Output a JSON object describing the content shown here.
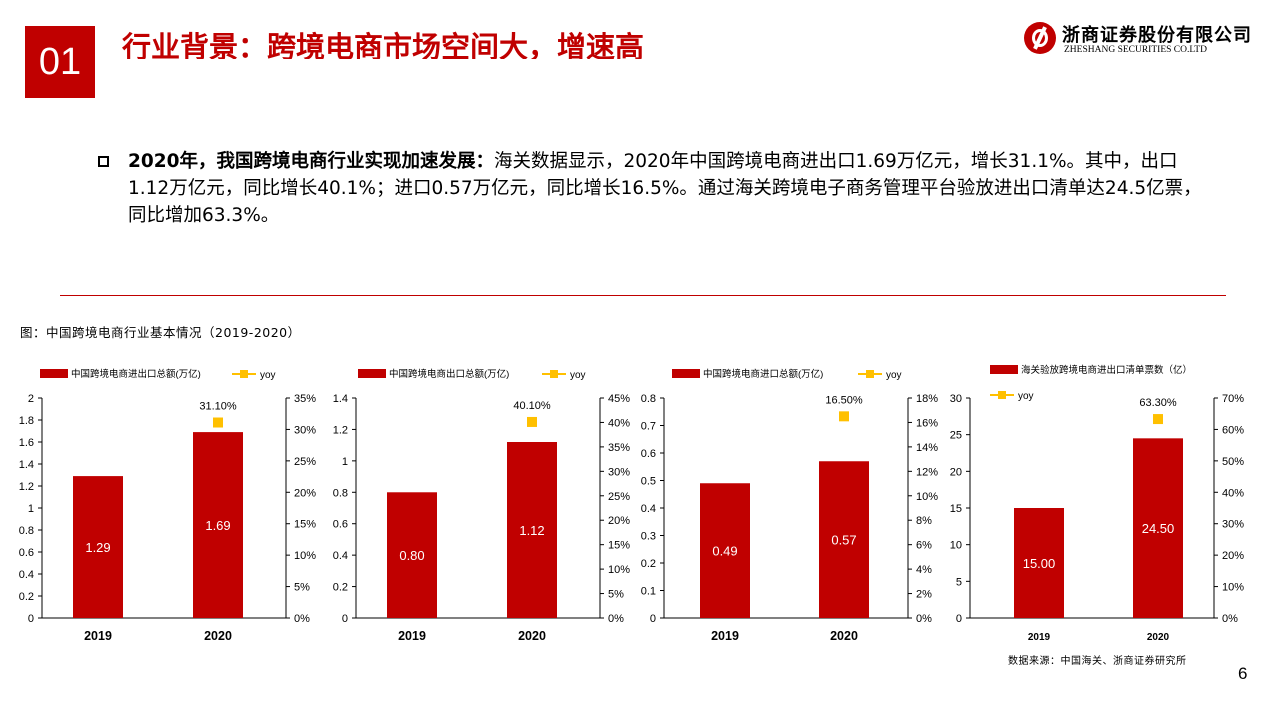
{
  "header": {
    "section_number": "01",
    "title": "行业背景：跨境电商市场空间大，增速高",
    "logo_cn": "浙商证券股份有限公司",
    "logo_en": "ZHESHANG SECURITIES CO.LTD"
  },
  "bullet": {
    "bold": "2020年，我国跨境电商行业实现加速发展：",
    "text": "海关数据显示，2020年中国跨境电商进出口1.69万亿元，增长31.1%。其中，出口1.12万亿元，同比增长40.1%；进口0.57万亿元，同比增长16.5%。通过海关跨境电子商务管理平台验放进出口清单达24.5亿票，同比增加63.3%。"
  },
  "figure_caption": "图：中国跨境电商行业基本情况（2019-2020）",
  "source": "数据来源：中国海关、浙商证券研究所",
  "page_number": "6",
  "colors": {
    "accent": "#c00000",
    "yoy": "#ffc000"
  },
  "chart_data": [
    {
      "type": "bar",
      "categories": [
        "2019",
        "2020"
      ],
      "series": [
        {
          "name": "中国跨境电商进出口总额(万亿)",
          "values": [
            1.29,
            1.69
          ],
          "labels": [
            "1.29",
            "1.69"
          ]
        },
        {
          "name": "yoy",
          "type": "scatter",
          "axis": "right",
          "values": [
            null,
            31.1
          ],
          "labels": [
            "",
            "31.10%"
          ]
        }
      ],
      "ylim": [
        0,
        2
      ],
      "yticks": [
        "0",
        "0.2",
        "0.4",
        "0.6",
        "0.8",
        "1",
        "1.2",
        "1.4",
        "1.6",
        "1.8",
        "2"
      ],
      "y2lim": [
        0,
        35
      ],
      "y2ticks": [
        "0%",
        "5%",
        "10%",
        "15%",
        "20%",
        "25%",
        "30%",
        "35%"
      ],
      "legend": "top",
      "grid": false
    },
    {
      "type": "bar",
      "categories": [
        "2019",
        "2020"
      ],
      "series": [
        {
          "name": "中国跨境电商出口总额(万亿)",
          "values": [
            0.8,
            1.12
          ],
          "labels": [
            "0.80",
            "1.12"
          ]
        },
        {
          "name": "yoy",
          "type": "scatter",
          "axis": "right",
          "values": [
            null,
            40.1
          ],
          "labels": [
            "",
            "40.10%"
          ]
        }
      ],
      "ylim": [
        0,
        1.4
      ],
      "yticks": [
        "0",
        "0.2",
        "0.4",
        "0.6",
        "0.8",
        "1",
        "1.2",
        "1.4"
      ],
      "y2lim": [
        0,
        45
      ],
      "y2ticks": [
        "0%",
        "5%",
        "10%",
        "15%",
        "20%",
        "25%",
        "30%",
        "35%",
        "40%",
        "45%"
      ],
      "legend": "top",
      "grid": false
    },
    {
      "type": "bar",
      "categories": [
        "2019",
        "2020"
      ],
      "series": [
        {
          "name": "中国跨境电商进口总额(万亿)",
          "values": [
            0.49,
            0.57
          ],
          "labels": [
            "0.49",
            "0.57"
          ]
        },
        {
          "name": "yoy",
          "type": "scatter",
          "axis": "right",
          "values": [
            null,
            16.5
          ],
          "labels": [
            "",
            "16.50%"
          ]
        }
      ],
      "ylim": [
        0,
        0.8
      ],
      "yticks": [
        "0",
        "0.1",
        "0.2",
        "0.3",
        "0.4",
        "0.5",
        "0.6",
        "0.7",
        "0.8"
      ],
      "y2lim": [
        0,
        18
      ],
      "y2ticks": [
        "0%",
        "2%",
        "4%",
        "6%",
        "8%",
        "10%",
        "12%",
        "14%",
        "16%",
        "18%"
      ],
      "legend": "top",
      "grid": false
    },
    {
      "type": "bar",
      "categories": [
        "2019",
        "2020"
      ],
      "series": [
        {
          "name": "海关验放跨境电商进出口清单票数（亿）",
          "values": [
            15.0,
            24.5
          ],
          "labels": [
            "15.00",
            "24.50"
          ]
        },
        {
          "name": "yoy",
          "type": "scatter",
          "axis": "right",
          "values": [
            null,
            63.3
          ],
          "labels": [
            "",
            "63.30%"
          ]
        }
      ],
      "ylim": [
        0,
        30
      ],
      "yticks": [
        "0",
        "5",
        "10",
        "15",
        "20",
        "25",
        "30"
      ],
      "y2lim": [
        0,
        70
      ],
      "y2ticks": [
        "0%",
        "10%",
        "20%",
        "30%",
        "40%",
        "50%",
        "60%",
        "70%"
      ],
      "legend": "top",
      "grid": false
    }
  ]
}
